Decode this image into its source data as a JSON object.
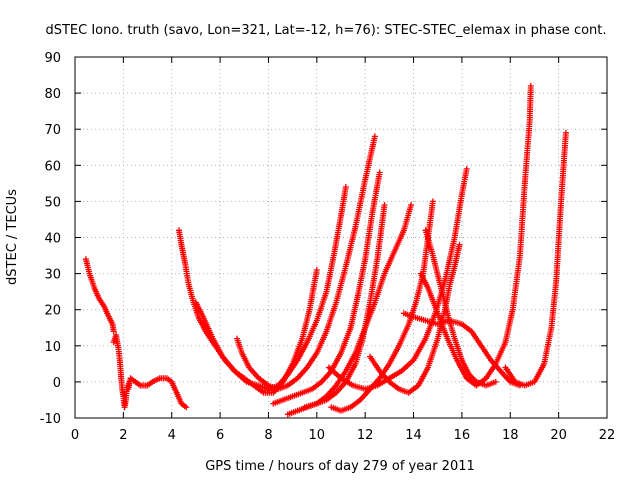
{
  "chart_data": {
    "type": "scatter",
    "title": "dSTEC Iono. truth (savo, Lon=321, Lat=-12, h=76): STEC-STEC_elemax in phase cont.",
    "xlabel": "GPS time / hours of day 279 of year 2011",
    "ylabel": "dSTEC  / TECUs",
    "xlim": [
      0,
      22
    ],
    "ylim": [
      -10,
      90
    ],
    "xticks": [
      0,
      2,
      4,
      6,
      8,
      10,
      12,
      14,
      16,
      18,
      20,
      22
    ],
    "yticks": [
      -10,
      0,
      10,
      20,
      30,
      40,
      50,
      60,
      70,
      80,
      90
    ],
    "grid": true,
    "marker": "+",
    "color": "#ff0000",
    "series": [
      {
        "points": [
          [
            0.45,
            34
          ],
          [
            0.6,
            30
          ],
          [
            0.8,
            26
          ],
          [
            1.0,
            23
          ],
          [
            1.2,
            21
          ],
          [
            1.4,
            18
          ],
          [
            1.55,
            16
          ],
          [
            1.6,
            14
          ]
        ]
      },
      {
        "points": [
          [
            1.6,
            11
          ],
          [
            1.7,
            13
          ],
          [
            1.8,
            9
          ],
          [
            1.85,
            6
          ],
          [
            1.9,
            2
          ],
          [
            1.95,
            -2
          ],
          [
            2.0,
            -4
          ],
          [
            2.05,
            -7
          ],
          [
            2.1,
            -5
          ],
          [
            2.15,
            -2
          ],
          [
            2.25,
            0
          ]
        ]
      },
      {
        "points": [
          [
            2.2,
            -2
          ],
          [
            2.3,
            1
          ],
          [
            2.5,
            0
          ],
          [
            2.7,
            -1
          ],
          [
            3.0,
            -1
          ],
          [
            3.2,
            0
          ],
          [
            3.5,
            1
          ],
          [
            3.8,
            1
          ],
          [
            4.0,
            0
          ],
          [
            4.2,
            -3
          ],
          [
            4.4,
            -6
          ],
          [
            4.6,
            -7
          ]
        ]
      },
      {
        "points": [
          [
            4.3,
            42
          ],
          [
            4.4,
            38
          ],
          [
            4.55,
            33
          ],
          [
            4.7,
            27
          ],
          [
            4.9,
            22
          ],
          [
            5.1,
            18
          ],
          [
            5.4,
            14
          ],
          [
            5.8,
            10
          ],
          [
            6.2,
            6
          ],
          [
            6.6,
            3
          ],
          [
            7.0,
            1
          ],
          [
            7.4,
            -1
          ],
          [
            7.8,
            -3
          ],
          [
            8.2,
            -3
          ],
          [
            8.6,
            0
          ],
          [
            9.0,
            5
          ],
          [
            9.4,
            12
          ],
          [
            9.7,
            20
          ],
          [
            10.0,
            31
          ]
        ]
      },
      {
        "points": [
          [
            5.0,
            22
          ],
          [
            5.3,
            18
          ],
          [
            5.7,
            12
          ],
          [
            6.1,
            7
          ],
          [
            6.6,
            3
          ],
          [
            7.1,
            0
          ],
          [
            7.6,
            -1
          ],
          [
            8.0,
            -2
          ],
          [
            8.4,
            -1
          ],
          [
            8.8,
            2
          ],
          [
            9.2,
            6
          ],
          [
            9.6,
            11
          ],
          [
            10.0,
            17
          ],
          [
            10.4,
            25
          ],
          [
            10.7,
            35
          ],
          [
            11.0,
            46
          ],
          [
            11.2,
            54
          ]
        ]
      },
      {
        "points": [
          [
            6.7,
            12
          ],
          [
            6.9,
            8
          ],
          [
            7.2,
            4
          ],
          [
            7.6,
            1
          ],
          [
            8.0,
            -1
          ],
          [
            8.4,
            -2
          ],
          [
            8.8,
            -1
          ],
          [
            9.2,
            1
          ],
          [
            9.6,
            4
          ],
          [
            10.0,
            8
          ],
          [
            10.4,
            14
          ],
          [
            10.8,
            22
          ],
          [
            11.2,
            32
          ],
          [
            11.6,
            43
          ],
          [
            12.0,
            56
          ],
          [
            12.4,
            68
          ]
        ]
      },
      {
        "points": [
          [
            8.2,
            -6
          ],
          [
            8.6,
            -5
          ],
          [
            9.0,
            -4
          ],
          [
            9.4,
            -3
          ],
          [
            9.8,
            -2
          ],
          [
            10.2,
            0
          ],
          [
            10.6,
            3
          ],
          [
            11.0,
            8
          ],
          [
            11.4,
            15
          ],
          [
            11.7,
            24
          ],
          [
            12.0,
            34
          ],
          [
            12.3,
            47
          ],
          [
            12.6,
            58
          ]
        ]
      },
      {
        "points": [
          [
            8.8,
            -9
          ],
          [
            9.2,
            -8
          ],
          [
            9.6,
            -7
          ],
          [
            10.0,
            -6
          ],
          [
            10.4,
            -5
          ],
          [
            10.8,
            -3
          ],
          [
            11.2,
            0
          ],
          [
            11.6,
            5
          ],
          [
            11.9,
            12
          ],
          [
            12.2,
            22
          ],
          [
            12.5,
            34
          ],
          [
            12.8,
            49
          ]
        ]
      },
      {
        "points": [
          [
            9.5,
            -7
          ],
          [
            10.0,
            -6
          ],
          [
            10.4,
            -4
          ],
          [
            10.8,
            -1
          ],
          [
            11.2,
            3
          ],
          [
            11.6,
            8
          ],
          [
            12.0,
            15
          ],
          [
            12.4,
            22
          ],
          [
            12.8,
            30
          ],
          [
            13.2,
            36
          ],
          [
            13.6,
            42
          ],
          [
            13.9,
            49
          ]
        ]
      },
      {
        "points": [
          [
            10.6,
            -7
          ],
          [
            11.0,
            -8
          ],
          [
            11.4,
            -7
          ],
          [
            11.8,
            -5
          ],
          [
            12.2,
            -2
          ],
          [
            12.6,
            1
          ],
          [
            13.0,
            5
          ],
          [
            13.4,
            10
          ],
          [
            13.8,
            16
          ],
          [
            14.1,
            22
          ],
          [
            14.4,
            30
          ],
          [
            14.6,
            40
          ],
          [
            14.8,
            50
          ]
        ]
      },
      {
        "points": [
          [
            10.5,
            4
          ],
          [
            11.0,
            1
          ],
          [
            11.5,
            -1
          ],
          [
            12.0,
            -2
          ],
          [
            12.5,
            -1
          ],
          [
            13.0,
            1
          ],
          [
            13.5,
            3
          ],
          [
            14.0,
            6
          ],
          [
            14.5,
            12
          ],
          [
            14.9,
            19
          ],
          [
            15.3,
            28
          ],
          [
            15.7,
            40
          ],
          [
            16.0,
            52
          ],
          [
            16.2,
            59
          ]
        ]
      },
      {
        "points": [
          [
            12.2,
            7
          ],
          [
            12.6,
            3
          ],
          [
            13.0,
            0
          ],
          [
            13.4,
            -2
          ],
          [
            13.8,
            -3
          ],
          [
            14.2,
            -1
          ],
          [
            14.6,
            4
          ],
          [
            15.0,
            12
          ],
          [
            15.3,
            20
          ],
          [
            15.5,
            27
          ],
          [
            15.7,
            32
          ],
          [
            15.9,
            38
          ]
        ]
      },
      {
        "points": [
          [
            13.6,
            19
          ],
          [
            14.0,
            18
          ],
          [
            14.5,
            17
          ],
          [
            15.0,
            16
          ],
          [
            15.5,
            17
          ],
          [
            16.0,
            16
          ],
          [
            16.4,
            14
          ],
          [
            16.8,
            10
          ],
          [
            17.2,
            6
          ],
          [
            17.6,
            3
          ],
          [
            18.0,
            0
          ],
          [
            18.4,
            -1
          ]
        ]
      },
      {
        "points": [
          [
            14.3,
            30
          ],
          [
            14.6,
            26
          ],
          [
            15.0,
            19
          ],
          [
            15.4,
            12
          ],
          [
            15.8,
            6
          ],
          [
            16.2,
            1
          ],
          [
            16.6,
            -1
          ],
          [
            17.0,
            1
          ],
          [
            17.4,
            5
          ],
          [
            17.8,
            11
          ],
          [
            18.1,
            20
          ],
          [
            18.4,
            35
          ],
          [
            18.6,
            55
          ],
          [
            18.8,
            72
          ],
          [
            18.85,
            82
          ]
        ]
      },
      {
        "points": [
          [
            14.5,
            42
          ],
          [
            14.8,
            35
          ],
          [
            15.1,
            27
          ],
          [
            15.4,
            19
          ],
          [
            15.7,
            12
          ],
          [
            16.0,
            6
          ],
          [
            16.3,
            2
          ],
          [
            16.6,
            0
          ],
          [
            17.0,
            -1
          ],
          [
            17.4,
            0
          ]
        ]
      },
      {
        "points": [
          [
            17.8,
            4
          ],
          [
            18.2,
            0
          ],
          [
            18.6,
            -1
          ],
          [
            19.0,
            0
          ],
          [
            19.4,
            5
          ],
          [
            19.7,
            15
          ],
          [
            19.9,
            28
          ],
          [
            20.1,
            50
          ],
          [
            20.3,
            69
          ]
        ]
      }
    ]
  }
}
